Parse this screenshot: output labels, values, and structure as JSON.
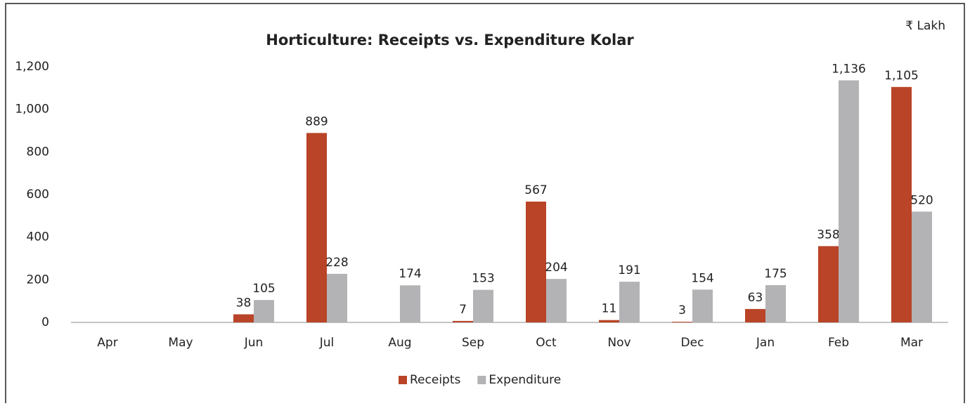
{
  "chart_data": {
    "type": "bar",
    "title": "Horticulture: Receipts vs. Expenditure Kolar",
    "unit": "₹ Lakh",
    "categories": [
      "Apr",
      "May",
      "Jun",
      "Jul",
      "Aug",
      "Sep",
      "Oct",
      "Nov",
      "Dec",
      "Jan",
      "Feb",
      "Mar"
    ],
    "series": [
      {
        "name": "Receipts",
        "color": "#b94427",
        "values": [
          null,
          null,
          38,
          889,
          null,
          7,
          567,
          11,
          3,
          63,
          358,
          1105
        ],
        "value_labels": [
          null,
          null,
          "38",
          "889",
          null,
          "7",
          "567",
          "11",
          "3",
          "63",
          "358",
          "1,105"
        ]
      },
      {
        "name": "Expenditure",
        "color": "#b3b3b6",
        "values": [
          null,
          null,
          105,
          228,
          174,
          153,
          204,
          191,
          154,
          175,
          1136,
          520
        ],
        "value_labels": [
          null,
          null,
          "105",
          "228",
          "174",
          "153",
          "204",
          "191",
          "154",
          "175",
          "1,136",
          "520"
        ]
      }
    ],
    "ylim": [
      0,
      1200
    ],
    "yticks": [
      0,
      200,
      400,
      600,
      800,
      {
        "value": 1000,
        "label": "1,000"
      },
      {
        "value": 1200,
        "label": "1,200"
      }
    ],
    "legend": "bottom"
  }
}
